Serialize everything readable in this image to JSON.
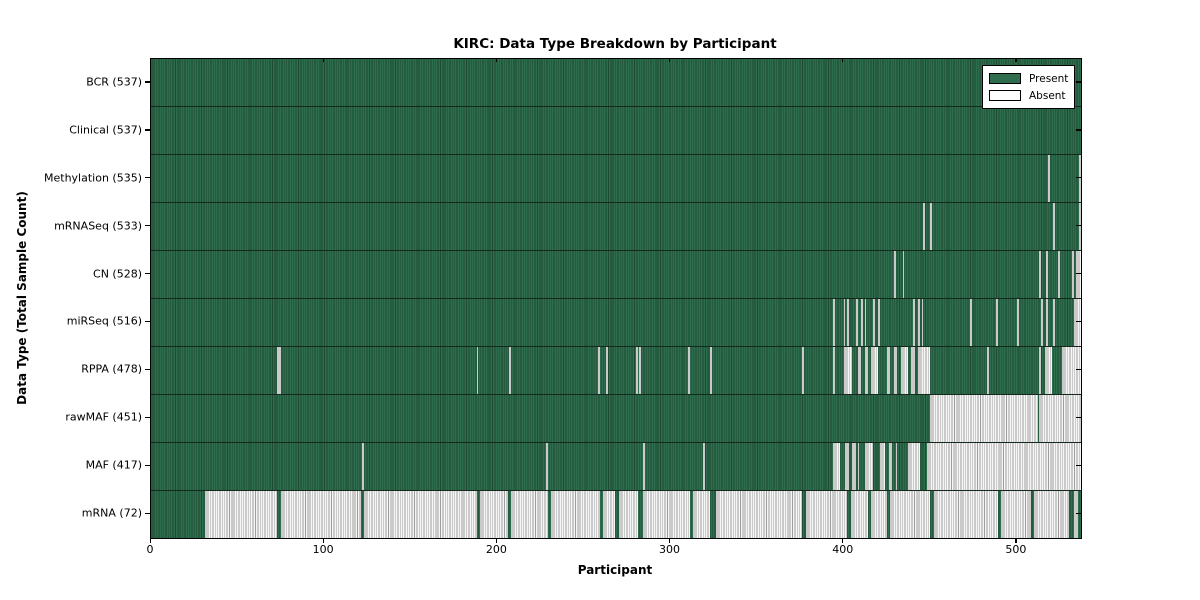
{
  "title": "KIRC: Data Type Breakdown by Participant",
  "axes": {
    "xlabel": "Participant",
    "ylabel": "Data Type (Total Sample Count)"
  },
  "legend": {
    "items": [
      {
        "label": "Present",
        "color": "#2e6e4e"
      },
      {
        "label": "Absent",
        "color": "#ffffff"
      }
    ]
  },
  "colors": {
    "present_fill": "#2e6e4e",
    "present_edge": "#1c4a33",
    "absent_fill": "#f6f6f6",
    "absent_edge": "#9d9d9d",
    "frame": "#000000"
  },
  "chart_data": {
    "type": "heatmap",
    "title": "KIRC: Data Type Breakdown by Participant",
    "xlabel": "Participant",
    "ylabel": "Data Type (Total Sample Count)",
    "legend": [
      "Present",
      "Absent"
    ],
    "x_ticks": [
      0,
      100,
      200,
      300,
      400,
      500
    ],
    "x_range": [
      0,
      537
    ],
    "total_participants": 537,
    "rows": [
      {
        "label": "BCR (537)",
        "data_type": "BCR",
        "present_count": 537,
        "absent_ranges": []
      },
      {
        "label": "Clinical (537)",
        "data_type": "Clinical",
        "present_count": 537,
        "absent_ranges": []
      },
      {
        "label": "Methylation (535)",
        "data_type": "Methylation",
        "present_count": 535,
        "absent_ranges": [
          [
            518,
            519
          ],
          [
            536,
            537
          ]
        ]
      },
      {
        "label": "mRNASeq (533)",
        "data_type": "mRNASeq",
        "present_count": 533,
        "absent_ranges": [
          [
            446,
            447
          ],
          [
            450,
            451
          ],
          [
            521,
            522
          ],
          [
            536,
            537
          ]
        ]
      },
      {
        "label": "CN (528)",
        "data_type": "CN",
        "present_count": 528,
        "absent_ranges": [
          [
            429,
            430
          ],
          [
            434,
            435
          ],
          [
            513,
            514
          ],
          [
            517,
            518
          ],
          [
            524,
            525
          ],
          [
            532,
            533
          ],
          [
            534,
            537
          ]
        ]
      },
      {
        "label": "miRSeq (516)",
        "data_type": "miRSeq",
        "present_count": 516,
        "absent_ranges": [
          [
            394,
            395
          ],
          [
            400,
            401
          ],
          [
            402,
            403
          ],
          [
            407,
            408
          ],
          [
            410,
            411
          ],
          [
            412,
            413
          ],
          [
            417,
            418
          ],
          [
            420,
            421
          ],
          [
            440,
            441
          ],
          [
            443,
            444
          ],
          [
            445,
            446
          ],
          [
            473,
            474
          ],
          [
            488,
            489
          ],
          [
            500,
            501
          ],
          [
            514,
            515
          ],
          [
            517,
            518
          ],
          [
            521,
            522
          ],
          [
            533,
            537
          ]
        ]
      },
      {
        "label": "RPPA (478)",
        "data_type": "RPPA",
        "present_count": 478,
        "absent_ranges": [
          [
            73,
            75
          ],
          [
            188,
            189
          ],
          [
            207,
            208
          ],
          [
            258,
            259
          ],
          [
            263,
            264
          ],
          [
            280,
            281
          ],
          [
            282,
            283
          ],
          [
            310,
            311
          ],
          [
            323,
            324
          ],
          [
            376,
            377
          ],
          [
            394,
            395
          ],
          [
            400,
            405
          ],
          [
            408,
            410
          ],
          [
            412,
            414
          ],
          [
            416,
            420
          ],
          [
            425,
            427
          ],
          [
            429,
            431
          ],
          [
            433,
            437
          ],
          [
            439,
            441
          ],
          [
            443,
            450
          ],
          [
            483,
            484
          ],
          [
            513,
            514
          ],
          [
            516,
            520
          ],
          [
            526,
            537
          ]
        ]
      },
      {
        "label": "rawMAF (451)",
        "data_type": "rawMAF",
        "present_count": 451,
        "absent_ranges": [
          [
            450,
            512
          ],
          [
            513,
            537
          ]
        ]
      },
      {
        "label": "MAF (417)",
        "data_type": "MAF",
        "present_count": 417,
        "absent_ranges": [
          [
            122,
            123
          ],
          [
            228,
            229
          ],
          [
            284,
            285
          ],
          [
            319,
            320
          ],
          [
            394,
            398
          ],
          [
            401,
            403
          ],
          [
            405,
            407
          ],
          [
            408,
            409
          ],
          [
            412,
            417
          ],
          [
            421,
            424
          ],
          [
            426,
            428
          ],
          [
            430,
            431
          ],
          [
            437,
            444
          ],
          [
            448,
            537
          ]
        ]
      },
      {
        "label": "mRNA (72)",
        "data_type": "mRNA",
        "present_count": 72,
        "absent_ranges": [
          [
            31,
            73
          ],
          [
            75,
            121
          ],
          [
            123,
            188
          ],
          [
            190,
            206
          ],
          [
            208,
            229
          ],
          [
            231,
            259
          ],
          [
            261,
            268
          ],
          [
            270,
            281
          ],
          [
            284,
            311
          ],
          [
            313,
            323
          ],
          [
            326,
            376
          ],
          [
            378,
            402
          ],
          [
            404,
            414
          ],
          [
            416,
            425
          ],
          [
            427,
            450
          ],
          [
            452,
            489
          ],
          [
            491,
            508
          ],
          [
            510,
            530
          ],
          [
            533,
            535
          ]
        ]
      }
    ]
  }
}
